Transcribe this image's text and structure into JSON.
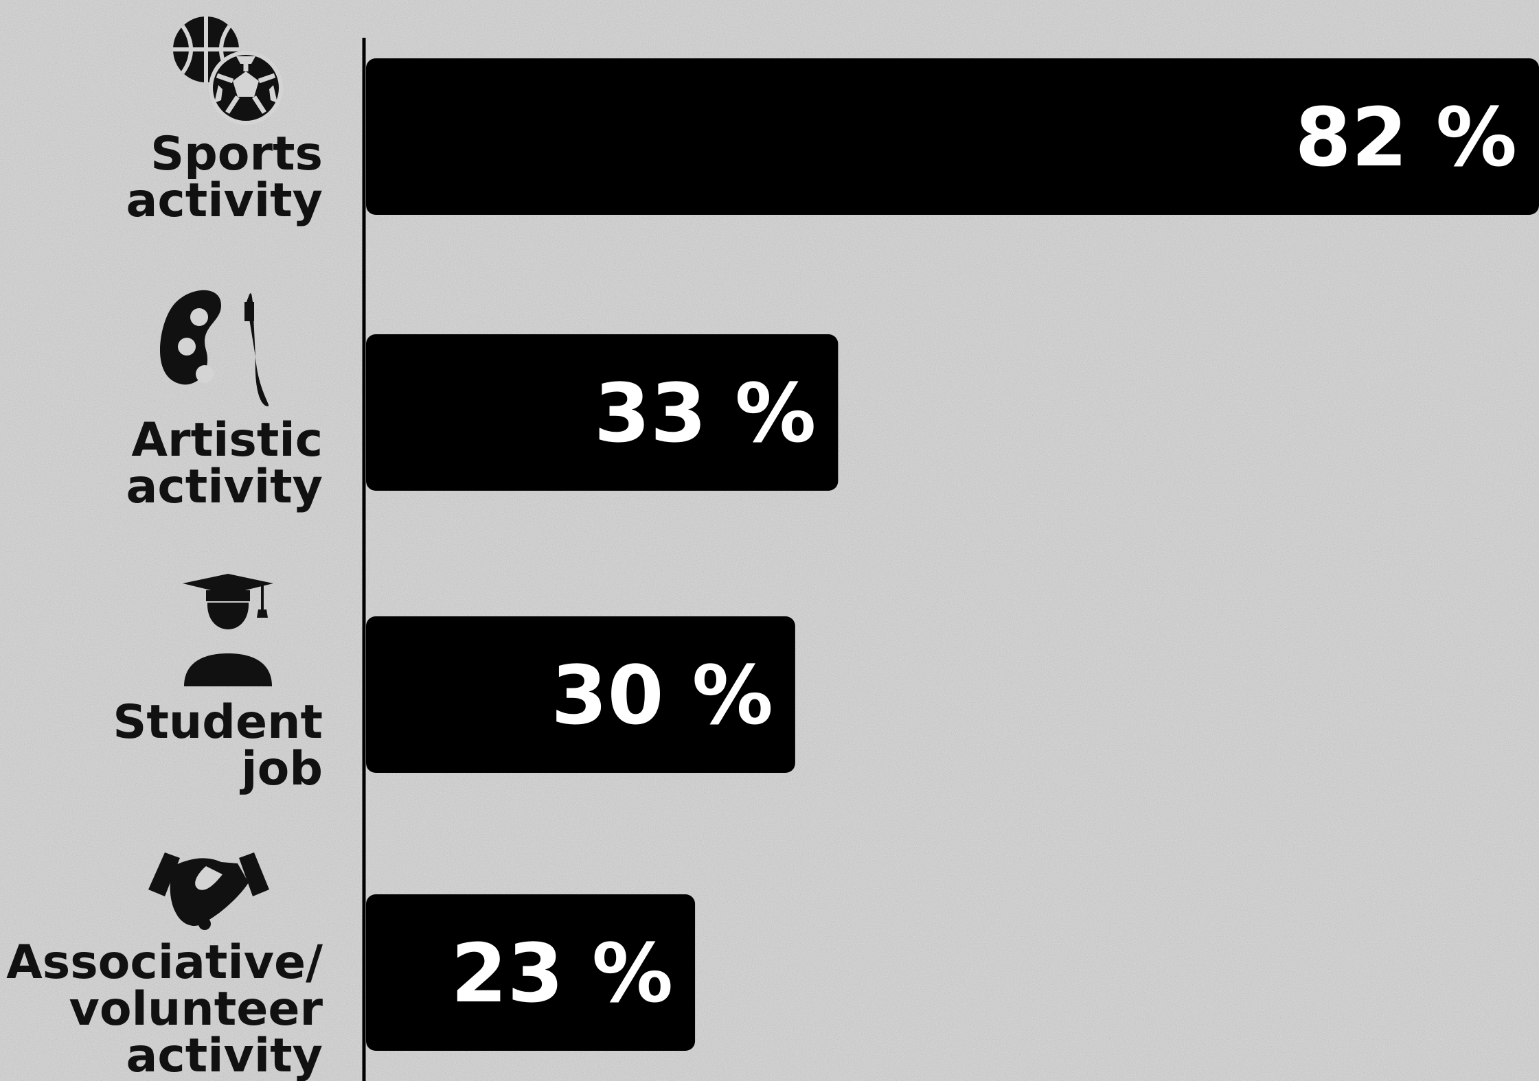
{
  "colors": {
    "background": "#d4d4d4",
    "bar": "#000000",
    "bar_text": "#ffffff",
    "label_text": "#111111"
  },
  "chart_data": {
    "type": "bar",
    "orientation": "horizontal",
    "categories": [
      "Sports activity",
      "Artistic activity",
      "Student job",
      "Associative/ volunteer activity"
    ],
    "values": [
      82,
      33,
      30,
      23
    ],
    "value_labels": [
      "82 %",
      "33 %",
      "30 %",
      "23 %"
    ],
    "category_lines": [
      [
        "Sports",
        "activity"
      ],
      [
        "Artistic",
        "activity"
      ],
      [
        "Student",
        "job"
      ],
      [
        "Associative/",
        "volunteer",
        "activity"
      ]
    ],
    "icons": [
      "sports-balls-icon",
      "paint-palette-icon",
      "graduate-icon",
      "handshake-icon"
    ],
    "unit": "%",
    "xlim": [
      0,
      82
    ],
    "grid": false,
    "legend": "none"
  }
}
